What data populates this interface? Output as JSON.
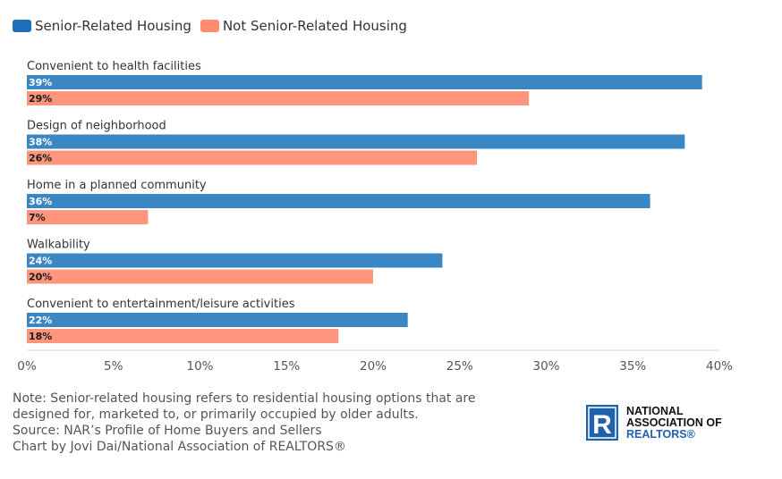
{
  "chart_data": {
    "type": "bar",
    "orientation": "horizontal",
    "categories": [
      "Convenient to health facilities",
      "Design of neighborhood",
      "Home in a planned community",
      "Walkability",
      "Convenient to entertainment/leisure activities"
    ],
    "series": [
      {
        "name": "Senior-Related Housing",
        "values": [
          39,
          38,
          36,
          24,
          22
        ],
        "color": "#3a87c4",
        "label_color": "#ffffff"
      },
      {
        "name": "Not Senior-Related Housing",
        "values": [
          29,
          26,
          7,
          20,
          18
        ],
        "color": "#ff957c",
        "label_color": "#1a1a1a"
      }
    ],
    "value_suffix": "%",
    "xlim": [
      0,
      40
    ],
    "xticks": [
      0,
      5,
      10,
      15,
      20,
      25,
      30,
      35,
      40
    ],
    "xtick_labels": [
      "0%",
      "5%",
      "10%",
      "15%",
      "20%",
      "25%",
      "30%",
      "35%",
      "40%"
    ],
    "legend_position": "top-left",
    "grid": false
  },
  "notes": {
    "line1": "Note: Senior-related housing refers to residential housing options that are",
    "line2": "designed for, marketed to, or primarily occupied by older adults.",
    "line3": "Source: NAR’s Profile of Home Buyers and Sellers",
    "line4": "Chart by Jovi Dai/National Association of REALTORS®"
  },
  "logo": {
    "mark": "R",
    "line1": "NATIONAL",
    "line2": "ASSOCIATION OF",
    "line3": "REALTORS®",
    "color": "#1f62ad"
  }
}
